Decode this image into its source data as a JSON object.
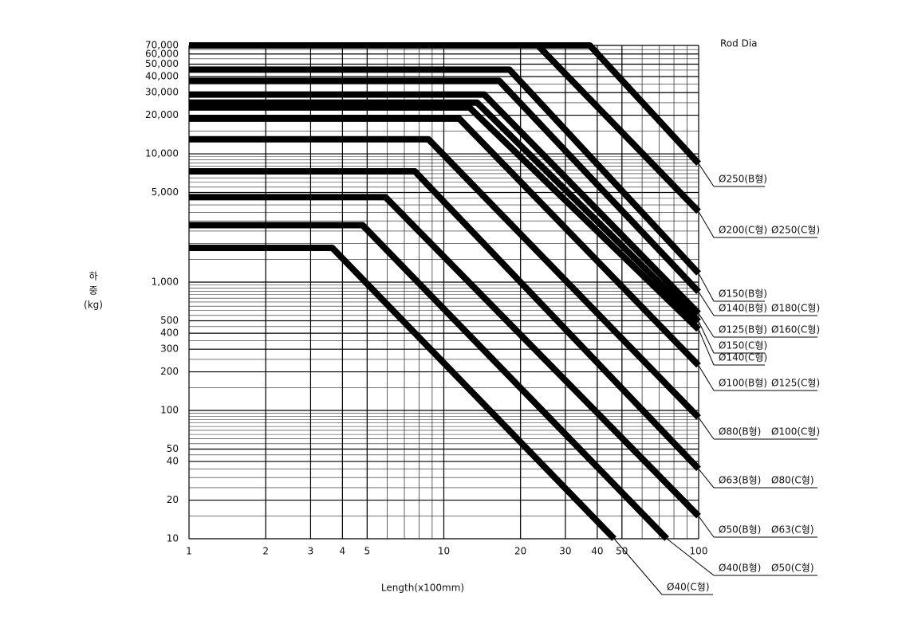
{
  "chart_data": {
    "type": "line",
    "log_x": true,
    "log_y": true,
    "grid": true,
    "color": "#000000",
    "legend_title": "Rod Dia",
    "x_label": "Length(x100mm)",
    "y_label_lines": [
      "하",
      "중",
      "(kg)"
    ],
    "xlim": [
      1,
      100
    ],
    "ylim": [
      10,
      70000
    ],
    "xticks": [
      1,
      2,
      3,
      4,
      5,
      10,
      20,
      30,
      40,
      50,
      100
    ],
    "yticks": [
      10,
      20,
      40,
      50,
      100,
      200,
      300,
      400,
      500,
      {
        "value": 1000,
        "label": "1,000"
      },
      {
        "value": 5000,
        "label": "5,000"
      },
      {
        "value": 10000,
        "label": "10,000"
      },
      {
        "value": 20000,
        "label": "20,000"
      },
      {
        "value": 30000,
        "label": "30,000"
      },
      {
        "value": 40000,
        "label": "40,000"
      },
      {
        "value": 50000,
        "label": "50,000"
      },
      {
        "value": 60000,
        "label": "60,000"
      },
      {
        "value": 70000,
        "label": "70,000"
      }
    ],
    "series": [
      {
        "labels": [
          "Ø40(C형)"
        ],
        "x": [
          1,
          3.65,
          46.6
        ],
        "y": [
          1850,
          1850,
          10
        ]
      },
      {
        "labels": [
          "Ø40(B형)",
          "Ø50(C형)"
        ],
        "x": [
          1,
          4.8,
          75
        ],
        "y": [
          2780,
          2780,
          10
        ]
      },
      {
        "labels": [
          "Ø50(B형)",
          "Ø63(C형)"
        ],
        "x": [
          1,
          5.9,
          100
        ],
        "y": [
          4600,
          4600,
          15
        ]
      },
      {
        "labels": [
          "Ø63(B형)",
          "Ø80(C형)"
        ],
        "x": [
          1,
          7.7,
          100
        ],
        "y": [
          7300,
          7300,
          35
        ]
      },
      {
        "labels": [
          "Ø80(B형)",
          "Ø100(C형)"
        ],
        "x": [
          1,
          8.7,
          100
        ],
        "y": [
          13000,
          13000,
          88
        ]
      },
      {
        "labels": [
          "Ø100(B형)",
          "Ø125(C형)"
        ],
        "x": [
          1,
          11.5,
          100
        ],
        "y": [
          18800,
          18800,
          224
        ]
      },
      {
        "labels": [
          "Ø140(C형)"
        ],
        "x": [
          1,
          12.6,
          100
        ],
        "y": [
          23000,
          23000,
          428
        ]
      },
      {
        "labels": [
          "Ø150(C형)"
        ],
        "x": [
          1,
          13.5,
          100
        ],
        "y": [
          25100,
          25100,
          494
        ]
      },
      {
        "labels": [
          "Ø125(B형)",
          "Ø160(C형)"
        ],
        "x": [
          1,
          14.4,
          100
        ],
        "y": [
          29000,
          29000,
          570
        ]
      },
      {
        "labels": [
          "Ø140(B형)",
          "Ø180(C형)"
        ],
        "x": [
          1,
          16.5,
          100
        ],
        "y": [
          37100,
          37100,
          840
        ]
      },
      {
        "labels": [
          "Ø150(B형)"
        ],
        "x": [
          1,
          18.1,
          100
        ],
        "y": [
          45300,
          45300,
          1170
        ]
      },
      {
        "labels": [
          "Ø200(C형)",
          "Ø250(C형)"
        ],
        "x": [
          1,
          23.4,
          100
        ],
        "y": [
          70000,
          70000,
          3550
        ]
      },
      {
        "labels": [
          "Ø250(B형)"
        ],
        "x": [
          1,
          37.4,
          100
        ],
        "y": [
          70000,
          70000,
          8400
        ]
      }
    ]
  }
}
